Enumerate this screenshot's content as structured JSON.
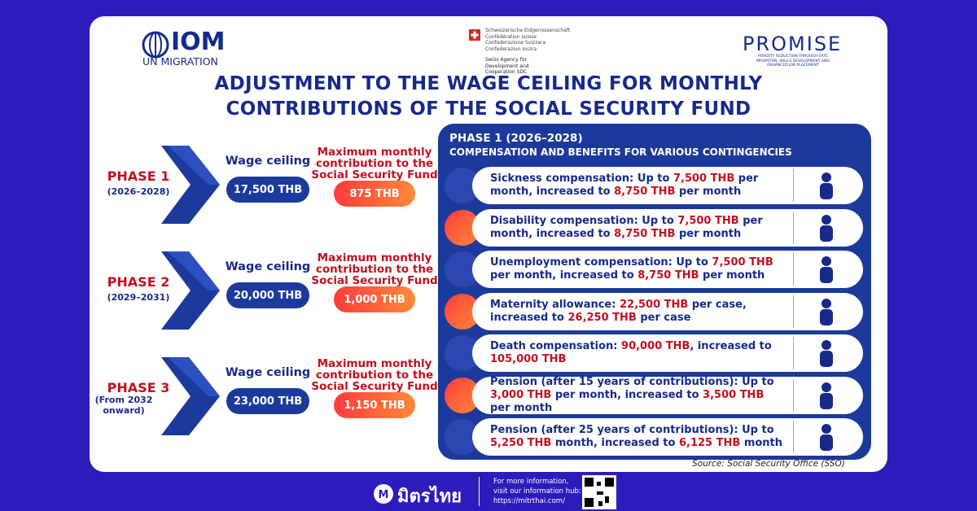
{
  "logos": {
    "iom": {
      "name": "IOM",
      "tagline": "UN MIGRATION"
    },
    "swiss": {
      "lines": [
        "Schweizerische Eidgenossenschaft",
        "Confédération suisse",
        "Confederazione Svizzera",
        "Confederaziun svizra"
      ],
      "agency": "Swiss Agency for Development and Cooperation SDC"
    },
    "promise": {
      "name": "PROMISE",
      "tagline": "POVERTY REDUCTION THROUGH SAFE MIGRATION, SKILLS DEVELOPMENT AND ENHANCED JOB PLACEMENT"
    }
  },
  "title": {
    "lines": [
      "ADJUSTMENT TO THE WAGE CEILING FOR MONTHLY",
      "CONTRIBUTIONS OF THE SOCIAL SECURITY FUND"
    ]
  },
  "phases": [
    {
      "name": "PHASE 1",
      "period": "(2026–2028)",
      "wage_label": "Wage ceiling",
      "wage": "17,500 THB",
      "contribution_label": "Maximum monthly contribution to the Social Security Fund",
      "contribution": "875  THB"
    },
    {
      "name": "PHASE 2",
      "period": "(2029–2031)",
      "wage_label": "Wage ceiling",
      "wage": "20,000 THB",
      "contribution_label": "Maximum monthly contribution to the Social Security Fund",
      "contribution": "1,000  THB"
    },
    {
      "name": "PHASE 3",
      "period": "(From 2032 onward)",
      "wage_label": "Wage ceiling",
      "wage": "23,000 THB",
      "contribution_label": "Maximum monthly contribution to the Social Security Fund",
      "contribution": "1,150 THB"
    }
  ],
  "panel": {
    "title": "PHASE 1 (2026–2028)",
    "subtitle": "COMPENSATION AND BENEFITS FOR VARIOUS CONTINGENCIES",
    "benefits": [
      {
        "parts": [
          "Sickness compensation: Up to ",
          "7,500 THB",
          " per month, increased to ",
          "8,750 THB",
          " per month"
        ]
      },
      {
        "parts": [
          "Disability compensation: Up to ",
          "7,500 THB",
          " per month, increased to ",
          "8,750 THB",
          " per month"
        ]
      },
      {
        "parts": [
          "Unemployment compensation: Up to ",
          "7,500 THB",
          " per month, increased to ",
          "8,750 THB",
          " per month"
        ]
      },
      {
        "parts": [
          "Maternity allowance: ",
          "22,500 THB",
          " per case, increased to ",
          "26,250 THB",
          " per case"
        ]
      },
      {
        "parts": [
          "Death compensation: ",
          "90,000 THB",
          ", increased to ",
          "105,000 THB",
          ""
        ]
      },
      {
        "parts": [
          "Pension (after 15 years of contributions): Up to ",
          "3,000 THB",
          " per month, increased to ",
          "3,500 THB",
          " per month"
        ]
      },
      {
        "parts": [
          "Pension (after 25 years of contributions): Up to ",
          "5,250 THB",
          " month, increased to ",
          "6,125 THB",
          " month"
        ]
      }
    ]
  },
  "source": "Source: Social Security Office  (SSO)",
  "footer": {
    "brand": "มิตรไทย",
    "info": [
      "For more information,",
      "visit our information hub:",
      "https://mitrthai.com/"
    ]
  }
}
